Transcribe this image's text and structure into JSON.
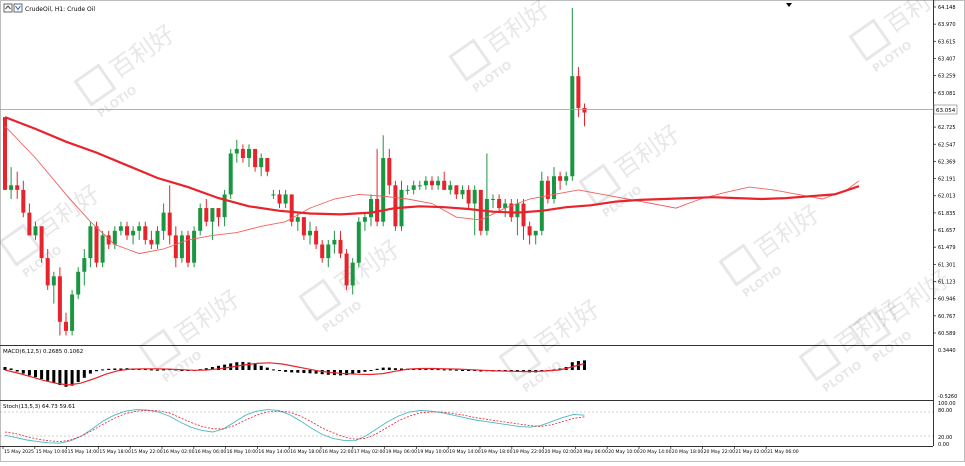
{
  "chart_window": {
    "title": "CrudeOil, H1:  Crude Oil",
    "icon_names": [
      "chart-menu-icon",
      "chart-settings-icon"
    ],
    "current_price": "63.054",
    "price_ticks": [
      "64.148",
      "63.970",
      "63.615",
      "63.407",
      "63.259",
      "63.081",
      "62.903",
      "62.725",
      "62.547",
      "62.369",
      "62.191",
      "62.013",
      "61.835",
      "61.657",
      "61.479",
      "61.301",
      "61.123",
      "60.946",
      "60.767",
      "60.589"
    ],
    "watermark_text": "百利好",
    "watermark_sub": "PLOTIO"
  },
  "macd_panel": {
    "label": "MACD(6,12,5) 0.2685 0.1062",
    "ticks": [
      "0.3440",
      "-0.5260"
    ]
  },
  "stoch_panel": {
    "label": "Stoch(13,5,3) 64.73 59.61",
    "ticks": [
      "100.00",
      "80.00",
      "20.00",
      "0.00"
    ]
  },
  "time_axis": {
    "labels": [
      "15 May 2025",
      "15 May 10:00",
      "15 May 14:00",
      "15 May 18:00",
      "15 May 22:00",
      "16 May 02:00",
      "16 May 06:00",
      "16 May 10:00",
      "16 May 14:00",
      "16 May 18:00",
      "16 May 22:00",
      "17 May 02:00",
      "19 May 06:00",
      "19 May 10:00",
      "19 May 14:00",
      "19 May 18:00",
      "19 May 22:00",
      "20 May 02:00",
      "20 May 06:00",
      "20 May 10:00",
      "20 May 14:00",
      "20 May 18:00",
      "20 May 22:00",
      "21 May 02:00",
      "21 May 06:00"
    ]
  },
  "colors": {
    "bull": "#1a9641",
    "bear": "#e8232b",
    "ma_slow": "#e8232b",
    "ma_fast": "#f06060",
    "macd_signal": "#e8232b",
    "stoch_main": "#4cb8c4",
    "stoch_signal": "#e8232b"
  },
  "chart_data": {
    "type": "candlestick",
    "y_range": [
      60.5,
      64.16
    ],
    "candles": [
      [
        62.95,
        62.95,
        62.15,
        62.15
      ],
      [
        62.15,
        62.4,
        62.05,
        62.2
      ],
      [
        62.2,
        62.35,
        62.05,
        62.15
      ],
      [
        62.15,
        62.25,
        61.85,
        61.9
      ],
      [
        61.9,
        62.0,
        61.65,
        61.65
      ],
      [
        61.65,
        61.8,
        61.6,
        61.75
      ],
      [
        61.75,
        61.75,
        61.35,
        61.4
      ],
      [
        61.4,
        61.5,
        61.05,
        61.1
      ],
      [
        61.1,
        61.25,
        60.9,
        61.2
      ],
      [
        61.2,
        61.3,
        60.55,
        60.7
      ],
      [
        60.7,
        60.8,
        60.55,
        60.6
      ],
      [
        60.6,
        61.05,
        60.55,
        61.0
      ],
      [
        61.0,
        61.3,
        60.95,
        61.25
      ],
      [
        61.25,
        61.5,
        61.1,
        61.4
      ],
      [
        61.4,
        61.8,
        61.3,
        61.75
      ],
      [
        61.75,
        61.8,
        61.3,
        61.35
      ],
      [
        61.35,
        61.7,
        61.3,
        61.65
      ],
      [
        61.65,
        61.7,
        61.5,
        61.55
      ],
      [
        61.55,
        61.75,
        61.5,
        61.7
      ],
      [
        61.7,
        61.8,
        61.65,
        61.75
      ],
      [
        61.75,
        61.8,
        61.6,
        61.65
      ],
      [
        61.65,
        61.75,
        61.55,
        61.7
      ],
      [
        61.7,
        61.8,
        61.6,
        61.75
      ],
      [
        61.75,
        61.8,
        61.55,
        61.6
      ],
      [
        61.6,
        61.7,
        61.5,
        61.55
      ],
      [
        61.55,
        61.75,
        61.5,
        61.7
      ],
      [
        61.7,
        62.0,
        61.6,
        61.9
      ],
      [
        61.9,
        62.2,
        61.55,
        61.65
      ],
      [
        61.65,
        61.75,
        61.3,
        61.4
      ],
      [
        61.4,
        61.7,
        61.35,
        61.65
      ],
      [
        61.65,
        61.7,
        61.3,
        61.35
      ],
      [
        61.35,
        61.75,
        61.3,
        61.7
      ],
      [
        61.7,
        62.0,
        61.65,
        61.95
      ],
      [
        61.95,
        62.05,
        61.75,
        61.8
      ],
      [
        61.8,
        61.95,
        61.6,
        61.95
      ],
      [
        61.95,
        61.95,
        61.75,
        61.85
      ],
      [
        61.85,
        62.15,
        61.75,
        62.1
      ],
      [
        62.1,
        62.6,
        62.05,
        62.55
      ],
      [
        62.55,
        62.7,
        62.45,
        62.6
      ],
      [
        62.6,
        62.65,
        62.45,
        62.5
      ],
      [
        62.5,
        62.65,
        62.4,
        62.6
      ],
      [
        62.6,
        62.6,
        62.35,
        62.4
      ],
      [
        62.4,
        62.55,
        62.3,
        62.5
      ],
      [
        62.5,
        62.5,
        62.3,
        62.35
      ],
      [
        62.1,
        62.15,
        62.05,
        62.1
      ],
      [
        62.1,
        62.15,
        61.95,
        62.0
      ],
      [
        62.0,
        62.15,
        61.95,
        62.1
      ],
      [
        62.1,
        62.1,
        61.75,
        61.8
      ],
      [
        61.8,
        61.9,
        61.7,
        61.85
      ],
      [
        61.85,
        61.85,
        61.6,
        61.65
      ],
      [
        61.65,
        61.8,
        61.55,
        61.7
      ],
      [
        61.7,
        61.75,
        61.5,
        61.55
      ],
      [
        61.55,
        61.6,
        61.35,
        61.4
      ],
      [
        61.4,
        61.6,
        61.3,
        61.55
      ],
      [
        61.55,
        61.7,
        61.45,
        61.6
      ],
      [
        61.6,
        61.7,
        61.4,
        61.45
      ],
      [
        61.45,
        61.5,
        61.05,
        61.1
      ],
      [
        61.1,
        61.4,
        61.0,
        61.35
      ],
      [
        61.35,
        61.85,
        61.3,
        61.8
      ],
      [
        61.8,
        61.9,
        61.7,
        61.85
      ],
      [
        61.85,
        62.1,
        61.75,
        62.05
      ],
      [
        62.05,
        62.6,
        61.75,
        61.8
      ],
      [
        61.8,
        62.75,
        61.75,
        62.5
      ],
      [
        62.5,
        62.6,
        62.1,
        62.2
      ],
      [
        62.2,
        62.25,
        61.7,
        61.75
      ],
      [
        61.75,
        62.25,
        61.7,
        62.15
      ],
      [
        62.15,
        62.2,
        62.1,
        62.15
      ],
      [
        62.15,
        62.25,
        62.1,
        62.2
      ],
      [
        62.2,
        62.25,
        62.15,
        62.2
      ],
      [
        62.2,
        62.3,
        62.15,
        62.25
      ],
      [
        62.25,
        62.3,
        62.15,
        62.2
      ],
      [
        62.2,
        62.3,
        62.15,
        62.25
      ],
      [
        62.25,
        62.35,
        62.15,
        62.15
      ],
      [
        62.15,
        62.25,
        62.1,
        62.2
      ],
      [
        62.2,
        62.2,
        62.05,
        62.1
      ],
      [
        62.1,
        62.2,
        62.05,
        62.15
      ],
      [
        62.15,
        62.2,
        61.95,
        62.0
      ],
      [
        62.0,
        62.2,
        61.65,
        62.15
      ],
      [
        62.15,
        62.15,
        61.65,
        61.7
      ],
      [
        61.7,
        62.55,
        61.65,
        62.05
      ],
      [
        62.05,
        62.1,
        61.95,
        62.05
      ],
      [
        62.05,
        62.1,
        61.9,
        61.95
      ],
      [
        61.95,
        62.05,
        61.85,
        62.0
      ],
      [
        62.0,
        62.05,
        61.8,
        61.85
      ],
      [
        61.85,
        62.05,
        61.65,
        62.0
      ],
      [
        62.0,
        62.05,
        61.6,
        61.75
      ],
      [
        61.75,
        61.8,
        61.55,
        61.65
      ],
      [
        61.65,
        61.7,
        61.55,
        61.7
      ],
      [
        61.7,
        62.35,
        61.65,
        62.25
      ],
      [
        62.25,
        62.3,
        62.0,
        62.05
      ],
      [
        62.05,
        62.4,
        62.0,
        62.3
      ],
      [
        62.3,
        62.35,
        62.15,
        62.25
      ],
      [
        62.25,
        62.35,
        62.2,
        62.3
      ],
      [
        62.3,
        64.15,
        62.25,
        63.4
      ],
      [
        63.4,
        63.5,
        62.95,
        63.05
      ],
      [
        63.05,
        63.1,
        62.85,
        63.0
      ]
    ],
    "ma_slow": [
      [
        0,
        62.95
      ],
      [
        5,
        62.82
      ],
      [
        10,
        62.68
      ],
      [
        15,
        62.56
      ],
      [
        20,
        62.42
      ],
      [
        25,
        62.28
      ],
      [
        30,
        62.18
      ],
      [
        35,
        62.06
      ],
      [
        40,
        61.97
      ],
      [
        45,
        61.92
      ],
      [
        50,
        61.89
      ],
      [
        55,
        61.88
      ],
      [
        60,
        61.9
      ],
      [
        64,
        61.95
      ],
      [
        68,
        61.97
      ],
      [
        72,
        61.96
      ],
      [
        76,
        61.94
      ],
      [
        80,
        61.91
      ],
      [
        84,
        61.9
      ],
      [
        88,
        61.92
      ],
      [
        92,
        61.96
      ],
      [
        96,
        61.98
      ],
      [
        100,
        62.02
      ],
      [
        104,
        62.04
      ],
      [
        108,
        62.05
      ],
      [
        112,
        62.06
      ],
      [
        116,
        62.07
      ],
      [
        120,
        62.06
      ],
      [
        124,
        62.05
      ],
      [
        128,
        62.06
      ],
      [
        132,
        62.08
      ],
      [
        136,
        62.1
      ],
      [
        140,
        62.19
      ]
    ],
    "ma_fast": [
      [
        0,
        62.85
      ],
      [
        5,
        62.5
      ],
      [
        10,
        62.1
      ],
      [
        14,
        61.8
      ],
      [
        18,
        61.55
      ],
      [
        22,
        61.45
      ],
      [
        26,
        61.5
      ],
      [
        30,
        61.6
      ],
      [
        34,
        61.65
      ],
      [
        38,
        61.68
      ],
      [
        42,
        61.75
      ],
      [
        46,
        61.8
      ],
      [
        50,
        61.95
      ],
      [
        54,
        62.05
      ],
      [
        58,
        62.1
      ],
      [
        62,
        62.08
      ],
      [
        66,
        62.05
      ],
      [
        70,
        62.0
      ],
      [
        74,
        61.85
      ],
      [
        78,
        61.82
      ],
      [
        82,
        61.95
      ],
      [
        86,
        62.05
      ],
      [
        90,
        62.1
      ],
      [
        94,
        62.15
      ],
      [
        98,
        62.1
      ],
      [
        102,
        62.05
      ],
      [
        106,
        62.0
      ],
      [
        110,
        61.95
      ],
      [
        114,
        62.05
      ],
      [
        118,
        62.12
      ],
      [
        122,
        62.18
      ],
      [
        126,
        62.15
      ],
      [
        130,
        62.1
      ],
      [
        134,
        62.05
      ],
      [
        138,
        62.15
      ],
      [
        140,
        62.25
      ]
    ],
    "macd_hist": [
      0.1,
      0.05,
      -0.05,
      -0.12,
      -0.18,
      -0.24,
      -0.3,
      -0.36,
      -0.42,
      -0.5,
      -0.56,
      -0.52,
      -0.4,
      -0.26,
      -0.12,
      -0.04,
      0.02,
      0.04,
      0.05,
      0.05,
      0.06,
      0.05,
      0.05,
      0.04,
      0.02,
      0.01,
      0.02,
      0.03,
      0.02,
      -0.01,
      -0.02,
      0.0,
      0.03,
      0.06,
      0.1,
      0.14,
      0.18,
      0.22,
      0.26,
      0.27,
      0.25,
      0.2,
      0.14,
      0.08,
      0.02,
      -0.02,
      -0.06,
      -0.08,
      -0.09,
      -0.1,
      -0.11,
      -0.12,
      -0.14,
      -0.16,
      -0.17,
      -0.18,
      -0.17,
      -0.14,
      -0.1,
      -0.06,
      -0.02,
      0.04,
      0.08,
      0.08,
      0.06,
      0.05,
      0.04,
      0.04,
      0.04,
      0.04,
      0.04,
      0.03,
      0.02,
      0.02,
      0.01,
      0.0,
      -0.02,
      -0.03,
      -0.05,
      -0.04,
      -0.05,
      -0.04,
      -0.05,
      -0.05,
      -0.06,
      -0.07,
      -0.08,
      -0.08,
      -0.04,
      -0.01,
      0.02,
      0.05,
      0.1,
      0.26,
      0.3,
      0.32
    ],
    "macd_signal": [
      0.0,
      -0.1,
      -0.22,
      -0.34,
      -0.44,
      -0.5,
      -0.44,
      -0.3,
      -0.14,
      -0.02,
      0.03,
      0.04,
      0.04,
      0.03,
      0.01,
      -0.01,
      0.0,
      0.04,
      0.1,
      0.17,
      0.22,
      0.24,
      0.2,
      0.12,
      0.04,
      -0.04,
      -0.09,
      -0.12,
      -0.14,
      -0.15,
      -0.12,
      -0.04,
      0.03,
      0.05,
      0.05,
      0.04,
      0.03,
      0.01,
      -0.01,
      -0.03,
      -0.04,
      -0.05,
      -0.05,
      -0.03,
      0.0,
      0.1,
      0.22
    ],
    "stoch_main": [
      22,
      16,
      10,
      6,
      3,
      2,
      8,
      20,
      38,
      58,
      72,
      82,
      86,
      85,
      80,
      70,
      55,
      42,
      34,
      30,
      38,
      55,
      72,
      82,
      86,
      84,
      74,
      58,
      40,
      24,
      14,
      9,
      8,
      20,
      38,
      56,
      70,
      80,
      84,
      82,
      78,
      72,
      66,
      60,
      56,
      52,
      48,
      44,
      42,
      46,
      56,
      66,
      74,
      72
    ],
    "stoch_signal": [
      30,
      26,
      18,
      12,
      8,
      6,
      10,
      20,
      34,
      50,
      64,
      76,
      82,
      84,
      83,
      78,
      66,
      54,
      44,
      38,
      38,
      46,
      60,
      72,
      80,
      82,
      80,
      70,
      56,
      40,
      28,
      18,
      12,
      14,
      26,
      42,
      58,
      70,
      78,
      80,
      80,
      76,
      72,
      66,
      62,
      58,
      54,
      50,
      46,
      44,
      48,
      56,
      64,
      68
    ]
  }
}
